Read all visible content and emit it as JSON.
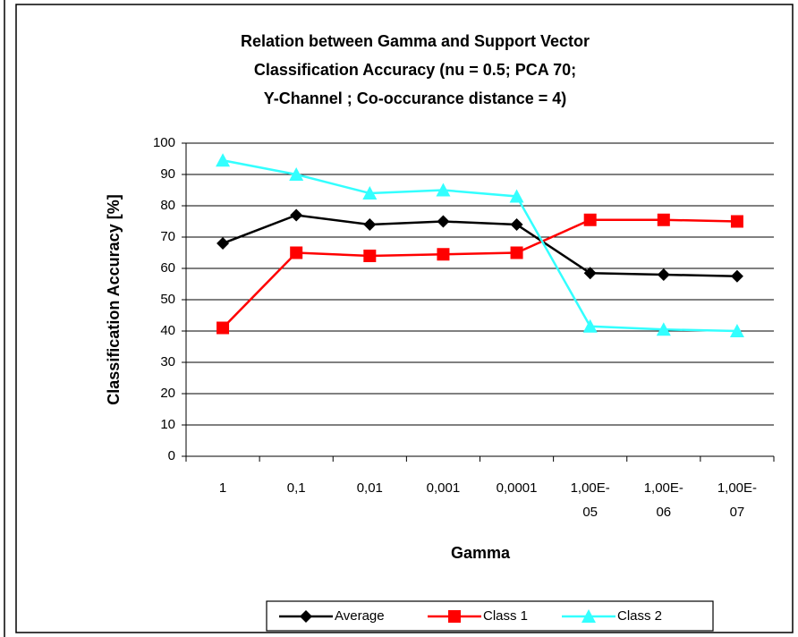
{
  "chart_data": {
    "type": "line",
    "title": [
      "Relation between Gamma and Support Vector",
      "Classification Accuracy (nu = 0.5;  PCA 70;",
      "Y-Channel ; Co-occurance distance = 4)"
    ],
    "x_label": "Gamma",
    "y_label": "Classification Accuracy [%]",
    "categories": [
      "1",
      "0,1",
      "0,01",
      "0,001",
      "0,0001",
      "1,00E-05",
      "1,00E-06",
      "1,00E-07"
    ],
    "series": [
      {
        "name": "Average",
        "color": "#000000",
        "marker": "diamond",
        "values": [
          68,
          77,
          74,
          75,
          74,
          58.5,
          58,
          57.5
        ]
      },
      {
        "name": "Class 1",
        "color": "#ff0000",
        "marker": "square",
        "values": [
          41,
          65,
          64,
          64.5,
          65,
          75.5,
          75.5,
          75
        ]
      },
      {
        "name": "Class 2",
        "color": "#33ffff",
        "marker": "triangle",
        "values": [
          94.5,
          90,
          84,
          85,
          83,
          41.5,
          40.5,
          40
        ]
      }
    ],
    "ylim": [
      0,
      100
    ],
    "yticks": [
      0,
      10,
      20,
      30,
      40,
      50,
      60,
      70,
      80,
      90,
      100
    ],
    "grid": true,
    "legend": "bottom"
  }
}
